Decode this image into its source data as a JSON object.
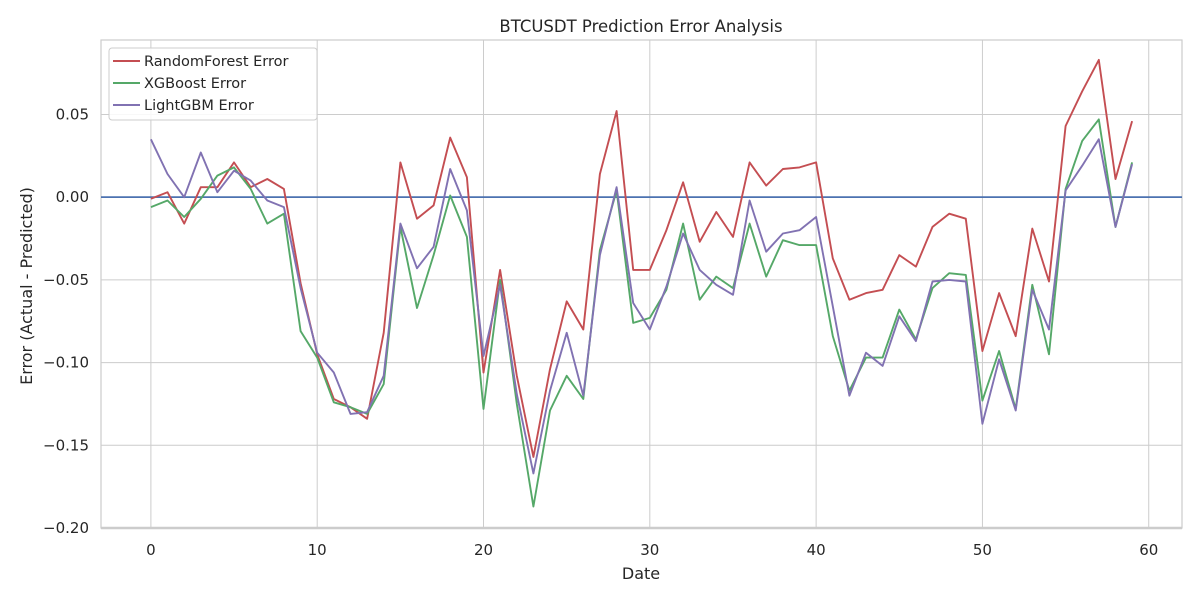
{
  "chart_data": {
    "type": "line",
    "title": "BTCUSDT Prediction Error Analysis",
    "xlabel": "Date",
    "ylabel": "Error (Actual - Predicted)",
    "xlim": [
      -3,
      62
    ],
    "ylim": [
      -0.2,
      0.095
    ],
    "xticks": [
      0,
      10,
      20,
      30,
      40,
      50,
      60
    ],
    "yticks": [
      -0.2,
      -0.15,
      -0.1,
      -0.05,
      0.0,
      0.05
    ],
    "ytick_labels": [
      "−0.20",
      "−0.15",
      "−0.10",
      "−0.05",
      "0.00",
      "0.05"
    ],
    "xtick_labels": [
      "0",
      "10",
      "20",
      "30",
      "40",
      "50",
      "60"
    ],
    "grid": true,
    "legend_position": "top-left",
    "reference_line": {
      "y": 0,
      "color": "#4c72b0"
    },
    "x": [
      0,
      1,
      2,
      3,
      4,
      5,
      6,
      7,
      8,
      9,
      10,
      11,
      12,
      13,
      14,
      15,
      16,
      17,
      18,
      19,
      20,
      21,
      22,
      23,
      24,
      25,
      26,
      27,
      28,
      29,
      30,
      31,
      32,
      33,
      34,
      35,
      36,
      37,
      38,
      39,
      40,
      41,
      42,
      43,
      44,
      45,
      46,
      47,
      48,
      49,
      50,
      51,
      52,
      53,
      54,
      55,
      56,
      57,
      58,
      59
    ],
    "series": [
      {
        "name": "RandomForest Error",
        "color": "#c44e52",
        "values": [
          -0.001,
          0.003,
          -0.016,
          0.006,
          0.006,
          0.021,
          0.006,
          0.011,
          0.005,
          -0.052,
          -0.095,
          -0.122,
          -0.127,
          -0.134,
          -0.082,
          0.021,
          -0.013,
          -0.005,
          0.036,
          0.012,
          -0.106,
          -0.044,
          -0.108,
          -0.157,
          -0.104,
          -0.063,
          -0.08,
          0.014,
          0.052,
          -0.044,
          -0.044,
          -0.02,
          0.009,
          -0.027,
          -0.009,
          -0.024,
          0.021,
          0.007,
          0.017,
          0.018,
          0.021,
          -0.037,
          -0.062,
          -0.058,
          -0.056,
          -0.035,
          -0.042,
          -0.018,
          -0.01,
          -0.013,
          -0.093,
          -0.058,
          -0.084,
          -0.019,
          -0.051,
          0.043,
          0.064,
          0.083,
          0.011,
          0.046
        ]
      },
      {
        "name": "XGBoost Error",
        "color": "#55a868",
        "values": [
          -0.006,
          -0.002,
          -0.012,
          -0.001,
          0.013,
          0.018,
          0.005,
          -0.016,
          -0.01,
          -0.081,
          -0.097,
          -0.124,
          -0.127,
          -0.131,
          -0.113,
          -0.018,
          -0.067,
          -0.035,
          0.001,
          -0.024,
          -0.128,
          -0.05,
          -0.125,
          -0.187,
          -0.129,
          -0.108,
          -0.122,
          -0.032,
          0.004,
          -0.076,
          -0.073,
          -0.056,
          -0.016,
          -0.062,
          -0.048,
          -0.055,
          -0.016,
          -0.048,
          -0.026,
          -0.029,
          -0.029,
          -0.084,
          -0.117,
          -0.097,
          -0.097,
          -0.068,
          -0.086,
          -0.055,
          -0.046,
          -0.047,
          -0.123,
          -0.093,
          -0.128,
          -0.053,
          -0.095,
          0.005,
          0.034,
          0.047,
          -0.018,
          0.021
        ]
      },
      {
        "name": "LightGBM Error",
        "color": "#8172b2",
        "values": [
          0.035,
          0.014,
          0.0,
          0.027,
          0.003,
          0.016,
          0.01,
          -0.002,
          -0.006,
          -0.055,
          -0.094,
          -0.106,
          -0.131,
          -0.13,
          -0.108,
          -0.016,
          -0.043,
          -0.03,
          0.017,
          -0.008,
          -0.096,
          -0.053,
          -0.119,
          -0.167,
          -0.117,
          -0.082,
          -0.12,
          -0.035,
          0.006,
          -0.064,
          -0.08,
          -0.054,
          -0.022,
          -0.044,
          -0.053,
          -0.059,
          -0.002,
          -0.033,
          -0.022,
          -0.02,
          -0.012,
          -0.066,
          -0.12,
          -0.094,
          -0.102,
          -0.072,
          -0.087,
          -0.051,
          -0.05,
          -0.051,
          -0.137,
          -0.098,
          -0.129,
          -0.056,
          -0.08,
          0.004,
          0.019,
          0.035,
          -0.018,
          0.02
        ]
      }
    ]
  }
}
